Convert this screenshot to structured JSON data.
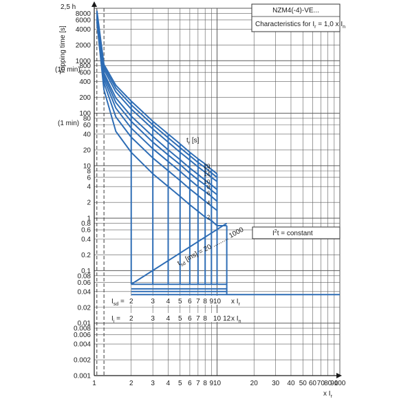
{
  "chart_data": {
    "type": "line",
    "title": "NZM4(-4)-VE...",
    "subtitle": "Characteristics for I",
    "subtitle_sub": "r",
    "subtitle_tail": " = 1,0 x I",
    "subtitle_tail_sub": "n",
    "ylabel": "Tripping time [s]",
    "xlabel": "x I",
    "xlabel_sub": "r",
    "y_top_label": "2,5 h",
    "y_10min_label": "(10 min)",
    "y_1min_label": "(1 min)",
    "xscale": "log",
    "yscale": "log",
    "xlim": [
      1,
      100
    ],
    "ylim": [
      0.001,
      10000
    ],
    "grid": true,
    "x_ticks": [
      "1",
      "2",
      "3",
      "4",
      "5",
      "6",
      "7",
      "8",
      "9",
      "10",
      "20",
      "30",
      "40",
      "50",
      "60",
      "70",
      "80",
      "90",
      "100"
    ],
    "x_tick_values": [
      1,
      2,
      3,
      4,
      5,
      6,
      7,
      8,
      9,
      10,
      20,
      30,
      40,
      50,
      60,
      70,
      80,
      90,
      100
    ],
    "y_ticks": [
      "8000",
      "6000",
      "4000",
      "2000",
      "1000",
      "800",
      "600",
      "400",
      "200",
      "100",
      "80",
      "60",
      "40",
      "20",
      "10",
      "8",
      "6",
      "4",
      "2",
      "1",
      "0.8",
      "0.6",
      "0.4",
      "0.2",
      "0.1",
      "0.08",
      "0.06",
      "0.04",
      "0.02",
      "0.01",
      "0.008",
      "0.006",
      "0.004",
      "0.002",
      "0.001"
    ],
    "y_tick_values": [
      8000,
      6000,
      4000,
      2000,
      1000,
      800,
      600,
      400,
      200,
      100,
      80,
      60,
      40,
      20,
      10,
      8,
      6,
      4,
      2,
      1,
      0.8,
      0.6,
      0.4,
      0.2,
      0.1,
      0.08,
      0.06,
      0.04,
      0.02,
      0.01,
      0.008,
      0.006,
      0.004,
      0.002,
      0.001
    ],
    "tr_label": "t",
    "tr_label_sub": "r",
    "tr_label_unit": " [s]",
    "tr_values": [
      "20",
      "17",
      "14",
      "10",
      "8",
      "6",
      "4",
      "2"
    ],
    "tsd_label": "t",
    "tsd_label_sub": "sd",
    "tsd_label_tail": " [ms] = 20 ......... 1000",
    "i2t_label": "I",
    "i2t_label_sup": "2",
    "i2t_label_tail": "t = constant",
    "isd_label": "I",
    "isd_label_sub": "sd",
    "isd_label_eq": " =",
    "isd_values": [
      "2",
      "3",
      "4",
      "5",
      "6",
      "7",
      "8",
      "9",
      "10"
    ],
    "isd_x": [
      2,
      3,
      4,
      5,
      6,
      7,
      8,
      9,
      10
    ],
    "isd_unit": "x I",
    "isd_unit_sub": "r",
    "ii_label": "I",
    "ii_label_sub": "i",
    "ii_label_eq": " =",
    "ii_values": [
      "2",
      "3",
      "4",
      "5",
      "6",
      "7",
      "8",
      "10",
      "12"
    ],
    "ii_x": [
      2,
      3,
      4,
      5,
      6,
      7,
      8,
      10,
      12
    ],
    "ii_unit": "x I",
    "ii_unit_sub": "n",
    "series": [
      {
        "name": "20",
        "points": [
          [
            1.05,
            9000
          ],
          [
            1.2,
            850
          ],
          [
            1.5,
            340
          ],
          [
            2,
            170
          ],
          [
            3,
            70
          ],
          [
            4,
            40
          ],
          [
            5,
            26
          ],
          [
            6,
            18
          ],
          [
            7,
            13.5
          ],
          [
            8,
            10.8
          ],
          [
            9,
            8.5
          ],
          [
            10,
            7
          ]
        ]
      },
      {
        "name": "17",
        "points": [
          [
            1.05,
            8500
          ],
          [
            1.2,
            760
          ],
          [
            1.5,
            300
          ],
          [
            2,
            145
          ],
          [
            3,
            60
          ],
          [
            4,
            34
          ],
          [
            5,
            22
          ],
          [
            6,
            15.5
          ],
          [
            7,
            11.5
          ],
          [
            8,
            9.2
          ],
          [
            9,
            7.3
          ],
          [
            10,
            6
          ]
        ]
      },
      {
        "name": "14",
        "points": [
          [
            1.05,
            8000
          ],
          [
            1.2,
            680
          ],
          [
            1.5,
            255
          ],
          [
            2,
            120
          ],
          [
            3,
            50
          ],
          [
            4,
            28
          ],
          [
            5,
            18
          ],
          [
            6,
            12.8
          ],
          [
            7,
            9.5
          ],
          [
            8,
            7.5
          ],
          [
            9,
            6
          ],
          [
            10,
            5
          ]
        ]
      },
      {
        "name": "10",
        "points": [
          [
            1.05,
            7500
          ],
          [
            1.2,
            580
          ],
          [
            1.5,
            195
          ],
          [
            2,
            88
          ],
          [
            3,
            36
          ],
          [
            4,
            20
          ],
          [
            5,
            13
          ],
          [
            6,
            9
          ],
          [
            7,
            6.8
          ],
          [
            8,
            5.3
          ],
          [
            9,
            4.3
          ],
          [
            10,
            3.5
          ]
        ]
      },
      {
        "name": "8",
        "points": [
          [
            1.05,
            7000
          ],
          [
            1.2,
            520
          ],
          [
            1.5,
            160
          ],
          [
            2,
            70
          ],
          [
            3,
            28
          ],
          [
            4,
            16
          ],
          [
            5,
            10.5
          ],
          [
            6,
            7.2
          ],
          [
            7,
            5.4
          ],
          [
            8,
            4.3
          ],
          [
            9,
            3.4
          ],
          [
            10,
            2.8
          ]
        ]
      },
      {
        "name": "6",
        "points": [
          [
            1.05,
            6500
          ],
          [
            1.2,
            450
          ],
          [
            1.5,
            125
          ],
          [
            2,
            52
          ],
          [
            3,
            21
          ],
          [
            4,
            12
          ],
          [
            5,
            7.8
          ],
          [
            6,
            5.4
          ],
          [
            7,
            4
          ],
          [
            8,
            3.2
          ],
          [
            9,
            2.6
          ],
          [
            10,
            2.1
          ]
        ]
      },
      {
        "name": "4",
        "points": [
          [
            1.05,
            6000
          ],
          [
            1.2,
            380
          ],
          [
            1.5,
            85
          ],
          [
            2,
            35
          ],
          [
            3,
            14
          ],
          [
            4,
            8
          ],
          [
            5,
            5.2
          ],
          [
            6,
            3.6
          ],
          [
            7,
            2.7
          ],
          [
            8,
            2.1
          ],
          [
            9,
            1.7
          ],
          [
            10,
            1.4
          ]
        ]
      },
      {
        "name": "2",
        "points": [
          [
            1.05,
            5500
          ],
          [
            1.2,
            280
          ],
          [
            1.5,
            45
          ],
          [
            2,
            18
          ],
          [
            3,
            7
          ],
          [
            4,
            4
          ],
          [
            5,
            2.6
          ],
          [
            6,
            1.8
          ],
          [
            7,
            1.35
          ],
          [
            8,
            1.05
          ],
          [
            9,
            0.9
          ],
          [
            10,
            0.72
          ]
        ]
      }
    ],
    "tsd_levels": [
      0.055,
      0.045,
      0.04
    ],
    "final_level": 0.035,
    "colors": {
      "curve": "#2e6db5",
      "grid": "#5a5a5a",
      "dashed": "#3b3b3b",
      "box_border": "#333333"
    }
  }
}
